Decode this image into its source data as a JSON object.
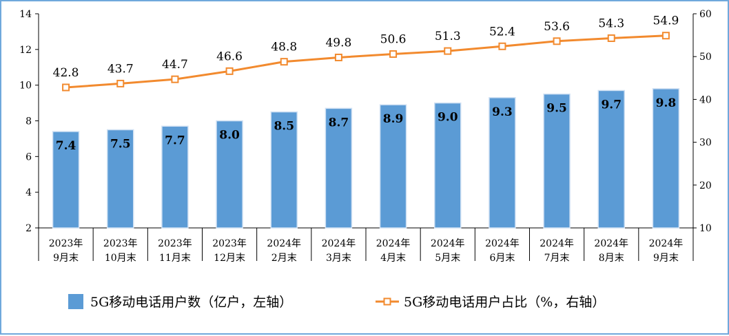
{
  "chart_data": {
    "type": "bar",
    "categories": [
      [
        "2023年",
        "9月末"
      ],
      [
        "2023年",
        "10月末"
      ],
      [
        "2023年",
        "11月末"
      ],
      [
        "2023年",
        "12月末"
      ],
      [
        "2024年",
        "2月末"
      ],
      [
        "2024年",
        "3月末"
      ],
      [
        "2024年",
        "4月末"
      ],
      [
        "2024年",
        "5月末"
      ],
      [
        "2024年",
        "6月末"
      ],
      [
        "2024年",
        "7月末"
      ],
      [
        "2024年",
        "8月末"
      ],
      [
        "2024年",
        "9月末"
      ]
    ],
    "series": [
      {
        "name": "5G移动电话用户数（亿户，左轴）",
        "type": "bar",
        "axis": "left",
        "color": "#5b9bd5",
        "values": [
          7.4,
          7.5,
          7.7,
          8.0,
          8.5,
          8.7,
          8.9,
          9.0,
          9.3,
          9.5,
          9.7,
          9.8
        ],
        "labels": [
          "7.4",
          "7.5",
          "7.7",
          "8.0",
          "8.5",
          "8.7",
          "8.9",
          "9.0",
          "9.3",
          "9.5",
          "9.7",
          "9.8"
        ]
      },
      {
        "name": "5G移动电话用户占比（%，右轴）",
        "type": "line",
        "axis": "right",
        "color": "#f28a2e",
        "values": [
          42.8,
          43.7,
          44.7,
          46.6,
          48.8,
          49.8,
          50.6,
          51.3,
          52.4,
          53.6,
          54.3,
          54.9
        ],
        "labels": [
          "42.8",
          "43.7",
          "44.7",
          "46.6",
          "48.8",
          "49.8",
          "50.6",
          "51.3",
          "52.4",
          "53.6",
          "54.3",
          "54.9"
        ]
      }
    ],
    "y_left": {
      "ylim": [
        2,
        14
      ],
      "ticks": [
        "2",
        "4",
        "6",
        "8",
        "10",
        "12",
        "14"
      ]
    },
    "y_right": {
      "ylim": [
        10,
        60
      ],
      "ticks": [
        "10",
        "20",
        "30",
        "40",
        "50",
        "60"
      ]
    },
    "grid": false,
    "legend_position": "bottom"
  }
}
